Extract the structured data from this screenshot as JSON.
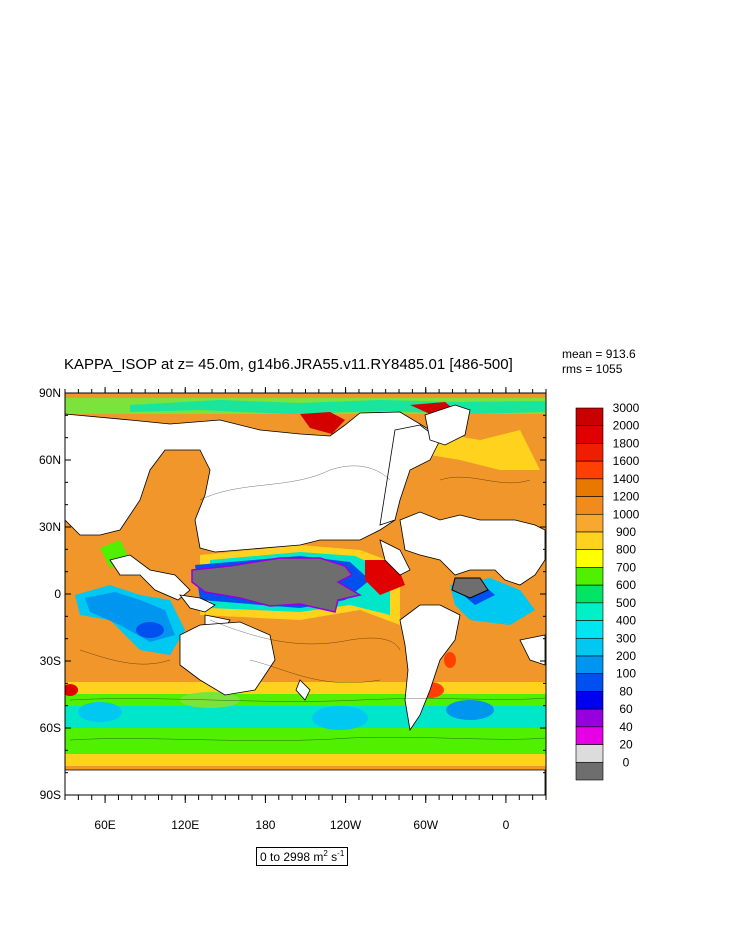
{
  "title": "KAPPA_ISOP at z=  45.0m, g14b6.JRA55.v11.RY8485.01 [486-500]",
  "stats": {
    "mean": "mean = 913.6",
    "rms": "rms = 1055"
  },
  "range": {
    "prefix": "0 to 2998 m",
    "exp1": "2",
    "mid": " s",
    "exp2": "-1"
  },
  "lat_labels": [
    "90N",
    "60N",
    "30N",
    "0",
    "30S",
    "60S",
    "90S"
  ],
  "lon_labels": [
    "60E",
    "120E",
    "180",
    "120W",
    "60W",
    "0"
  ],
  "colorbar": {
    "labels": [
      "3000",
      "2000",
      "1800",
      "1600",
      "1400",
      "1200",
      "1000",
      "900",
      "800",
      "700",
      "600",
      "500",
      "400",
      "300",
      "200",
      "100",
      "80",
      "60",
      "40",
      "20",
      "0"
    ],
    "colors": [
      "#c80000",
      "#e00000",
      "#f01e00",
      "#ff4000",
      "#e87800",
      "#f08c1e",
      "#f8a830",
      "#ffd21e",
      "#ffff00",
      "#50f000",
      "#00e664",
      "#00f0c8",
      "#00e6f0",
      "#00c8f0",
      "#0096f0",
      "#0050f0",
      "#0000f0",
      "#9600dc",
      "#e600e6",
      "#dcdcdc",
      "#6e6e6e"
    ]
  },
  "land_color": "#ffffff"
}
